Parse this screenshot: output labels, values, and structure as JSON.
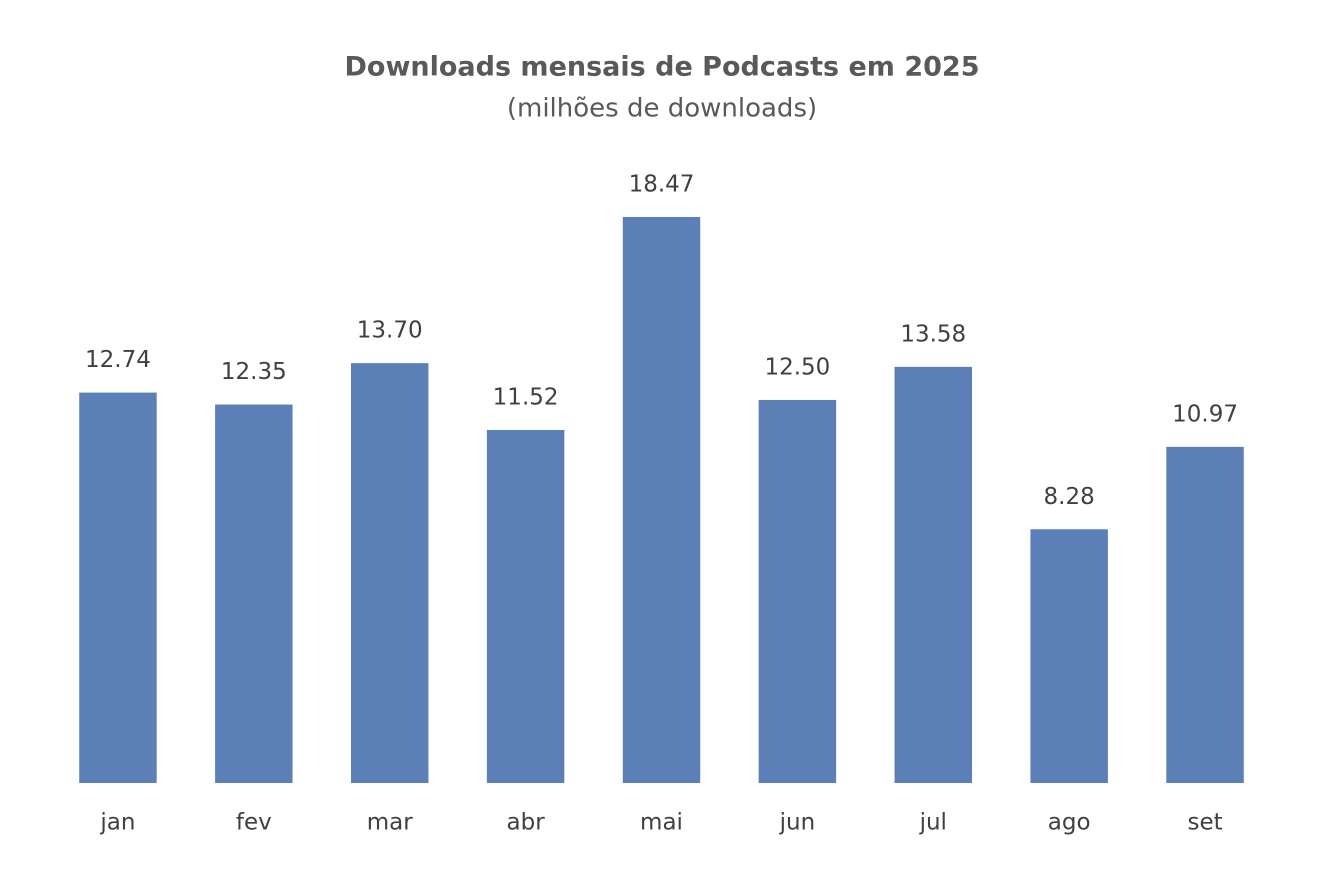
{
  "chart_data": {
    "type": "bar",
    "title": "Downloads mensais de Podcasts em 2025",
    "subtitle": "(milhões de downloads)",
    "categories": [
      "jan",
      "fev",
      "mar",
      "abr",
      "mai",
      "jun",
      "jul",
      "ago",
      "set"
    ],
    "values": [
      12.74,
      12.35,
      13.7,
      11.52,
      18.47,
      12.5,
      13.58,
      8.28,
      10.97
    ],
    "value_labels": [
      "12.74",
      "12.35",
      "13.70",
      "11.52",
      "18.47",
      "12.50",
      "13.58",
      "8.28",
      "10.97"
    ],
    "color": "#5b7fb6"
  }
}
